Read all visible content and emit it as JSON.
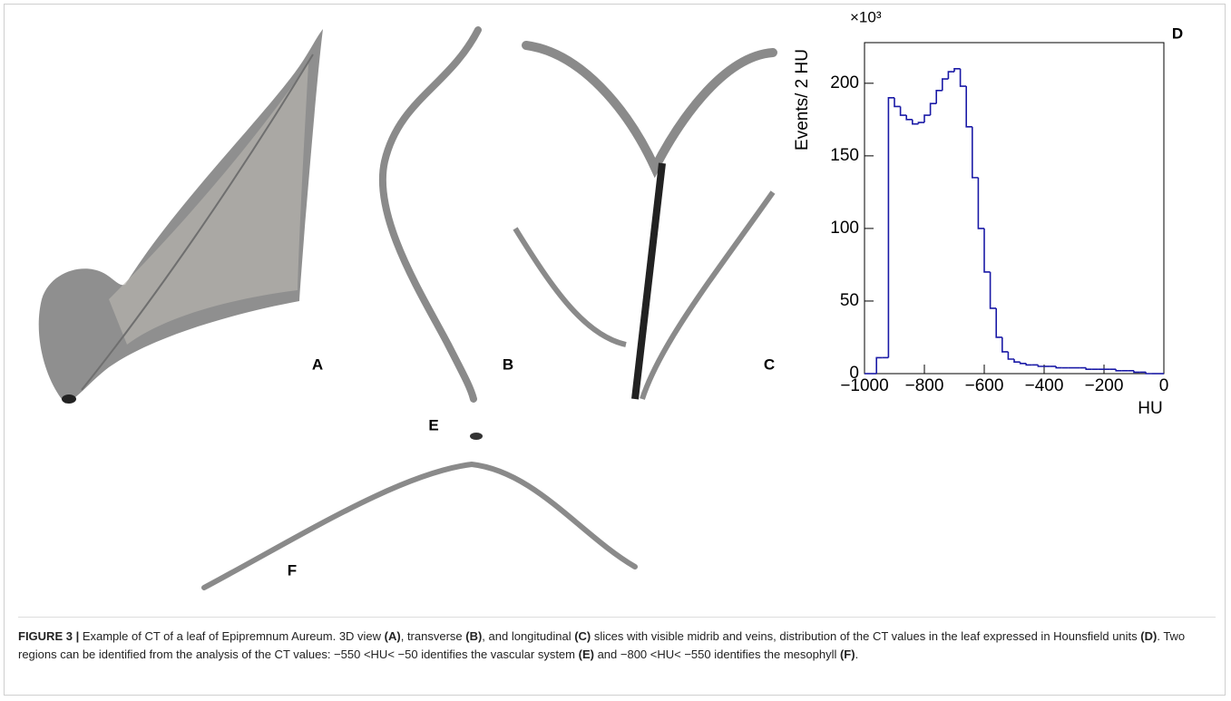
{
  "panels": {
    "labels": [
      "A",
      "B",
      "C",
      "E",
      "F"
    ]
  },
  "chart_data": {
    "type": "histogram",
    "panel_label": "D",
    "y_multiplier": "×10³",
    "ylabel": "Events/ 2 HU",
    "xlabel": "HU",
    "color": "#1a1aa6",
    "bins": [
      -1000,
      -980,
      -960,
      -940,
      -920,
      -900,
      -880,
      -860,
      -840,
      -820,
      -800,
      -780,
      -760,
      -740,
      -720,
      -700,
      -680,
      -660,
      -640,
      -620,
      -600,
      -580,
      -560,
      -540,
      -520,
      -500,
      -480,
      -460,
      -440,
      -420,
      -400,
      -380,
      -360,
      -340,
      -320,
      -300,
      -280,
      -260,
      -240,
      -220,
      -200,
      -180,
      -160,
      -140,
      -120,
      -100,
      -80,
      -60,
      -40,
      -20,
      0
    ],
    "values": [
      0,
      0,
      11,
      11,
      190,
      184,
      178,
      175,
      172,
      173,
      178,
      186,
      195,
      203,
      208,
      210,
      198,
      170,
      135,
      100,
      70,
      45,
      25,
      15,
      10,
      8,
      7,
      6,
      6,
      5,
      5,
      5,
      4,
      4,
      4,
      4,
      4,
      3,
      3,
      3,
      3,
      3,
      2,
      2,
      2,
      1,
      1,
      0,
      0,
      0
    ],
    "xlim": [
      -1000,
      0
    ],
    "ylim": [
      0,
      228
    ],
    "xticks": [
      {
        "value": -1000,
        "label": "−1000"
      },
      {
        "value": -800,
        "label": "−800"
      },
      {
        "value": -600,
        "label": "−600"
      },
      {
        "value": -400,
        "label": "−400"
      },
      {
        "value": -200,
        "label": "−200"
      },
      0
    ],
    "yticks": [
      0,
      50,
      100,
      150,
      200
    ]
  },
  "caption": {
    "segments": [
      {
        "text": "FIGURE 3 |",
        "bold": true
      },
      {
        "text": " Example of CT of a leaf of Epipremnum Aureum. 3D view ",
        "bold": false
      },
      {
        "text": "(A)",
        "bold": true
      },
      {
        "text": ", transverse ",
        "bold": false
      },
      {
        "text": "(B)",
        "bold": true
      },
      {
        "text": ", and longitudinal ",
        "bold": false
      },
      {
        "text": "(C)",
        "bold": true
      },
      {
        "text": " slices with visible midrib and veins, distribution of the CT values in the leaf expressed in Hounsfield units ",
        "bold": false
      },
      {
        "text": "(D)",
        "bold": true
      },
      {
        "text": ". Two regions can be identified from the analysis of the CT values: −550 <HU< −50 identifies the vascular system ",
        "bold": false
      },
      {
        "text": "(E)",
        "bold": true
      },
      {
        "text": " and −800 <HU< −550 identifies the mesophyll ",
        "bold": false
      },
      {
        "text": "(F)",
        "bold": true
      },
      {
        "text": ".",
        "bold": false
      }
    ]
  }
}
